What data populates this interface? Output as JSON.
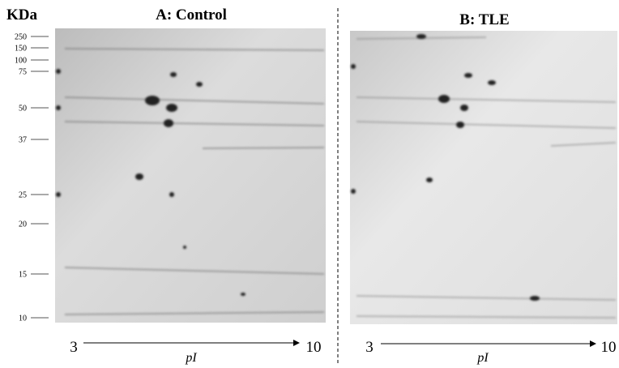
{
  "y_axis": {
    "title": "KDa",
    "markers": [
      250,
      150,
      100,
      75,
      50,
      37,
      25,
      20,
      15,
      10
    ]
  },
  "panels": [
    {
      "title": "A: Control",
      "x_axis": {
        "start": 3,
        "end": 10,
        "label": "pI"
      }
    },
    {
      "title": "B: TLE",
      "x_axis": {
        "start": 3,
        "end": 10,
        "label": "pI"
      }
    }
  ]
}
